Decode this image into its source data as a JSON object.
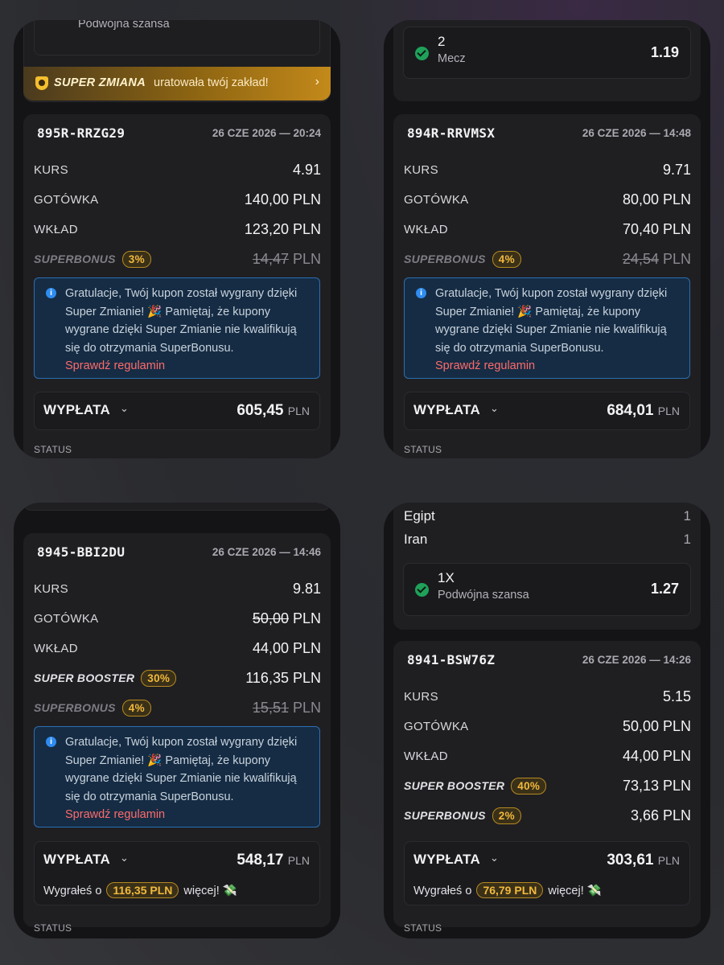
{
  "top_left": {
    "partial_selection_type": "Podwójna szansa",
    "banner": {
      "title": "SUPER ZMIANA",
      "text": "uratowała twój zakład!",
      "arrow": "›"
    },
    "bet": {
      "id": "895R-RRZG29",
      "date": "26 CZE 2026 — 20:24",
      "kurs_label": "KURS",
      "kurs_value": "4.91",
      "gotowka_label": "GOTÓWKA",
      "gotowka_value": "140,00 PLN",
      "wklad_label": "WKŁAD",
      "wklad_value": "123,20 PLN",
      "superbonus_label": "SUPERBONUS",
      "superbonus_pct": "3%",
      "superbonus_amount": "14,47",
      "currency": "PLN",
      "info_text": "Gratulacje, Twój kupon został wygrany dzięki Super Zmianie! 🎉 Pamiętaj, że kupony wygrane dzięki Super Zmianie nie kwalifikują się do otrzymania SuperBonusu.",
      "info_link": "Sprawdź regulamin",
      "payout_label": "WYPŁATA",
      "payout_value": "605,45",
      "payout_currency": "PLN",
      "status_label": "STATUS"
    }
  },
  "top_right": {
    "selection": {
      "name": "2",
      "type": "Mecz",
      "odds": "1.19"
    },
    "bet": {
      "id": "894R-RRVMSX",
      "date": "26 CZE 2026 — 14:48",
      "kurs_label": "KURS",
      "kurs_value": "9.71",
      "gotowka_label": "GOTÓWKA",
      "gotowka_value": "80,00 PLN",
      "wklad_label": "WKŁAD",
      "wklad_value": "70,40 PLN",
      "superbonus_label": "SUPERBONUS",
      "superbonus_pct": "4%",
      "superbonus_amount": "24,54",
      "currency": "PLN",
      "info_text": "Gratulacje, Twój kupon został wygrany dzięki Super Zmianie! 🎉 Pamiętaj, że kupony wygrane dzięki Super Zmianie nie kwalifikują się do otrzymania SuperBonusu.",
      "info_link": "Sprawdź regulamin",
      "payout_label": "WYPŁATA",
      "payout_value": "684,01",
      "payout_currency": "PLN",
      "status_label": "STATUS"
    }
  },
  "bottom_left": {
    "bet": {
      "id": "8945-BBI2DU",
      "date": "26 CZE 2026 — 14:46",
      "kurs_label": "KURS",
      "kurs_value": "9.81",
      "gotowka_label": "GOTÓWKA",
      "gotowka_amount": "50,00",
      "currency": "PLN",
      "wklad_label": "WKŁAD",
      "wklad_value": "44,00 PLN",
      "booster_label": "SUPER BOOSTER",
      "booster_pct": "30%",
      "booster_value": "116,35 PLN",
      "superbonus_label": "SUPERBONUS",
      "superbonus_pct": "4%",
      "superbonus_amount": "15,51",
      "info_text": "Gratulacje, Twój kupon został wygrany dzięki Super Zmianie! 🎉 Pamiętaj, że kupony wygrane dzięki Super Zmianie nie kwalifikują się do otrzymania SuperBonusu.",
      "info_link": "Sprawdź regulamin",
      "payout_label": "WYPŁATA",
      "payout_value": "548,17",
      "payout_currency": "PLN",
      "won_prefix": "Wygrałeś o",
      "won_amount": "116,35 PLN",
      "won_suffix": "więcej! 💸",
      "status_label": "STATUS"
    }
  },
  "bottom_right": {
    "teams": [
      {
        "name": "Egipt",
        "score": "1"
      },
      {
        "name": "Iran",
        "score": "1"
      }
    ],
    "selection": {
      "name": "1X",
      "type": "Podwójna szansa",
      "odds": "1.27"
    },
    "bet": {
      "id": "8941-BSW76Z",
      "date": "26 CZE 2026 — 14:26",
      "kurs_label": "KURS",
      "kurs_value": "5.15",
      "gotowka_label": "GOTÓWKA",
      "gotowka_value": "50,00 PLN",
      "wklad_label": "WKŁAD",
      "wklad_value": "44,00 PLN",
      "booster_label": "SUPER BOOSTER",
      "booster_pct": "40%",
      "booster_value": "73,13 PLN",
      "superbonus_label": "SUPERBONUS",
      "superbonus_pct": "2%",
      "superbonus_value": "3,66 PLN",
      "payout_label": "WYPŁATA",
      "payout_value": "303,61",
      "payout_currency": "PLN",
      "won_prefix": "Wygrałeś o",
      "won_amount": "76,79 PLN",
      "won_suffix": "więcej! 💸",
      "status_label": "STATUS"
    }
  },
  "colors": {
    "accent_gold": "#f1b93c",
    "link_red": "#ff6b6b",
    "info_blue": "#2f8cf0",
    "success_green": "#1fa15a"
  },
  "icons": {
    "chevron": "⌄",
    "check": "check-icon",
    "info": "i"
  }
}
